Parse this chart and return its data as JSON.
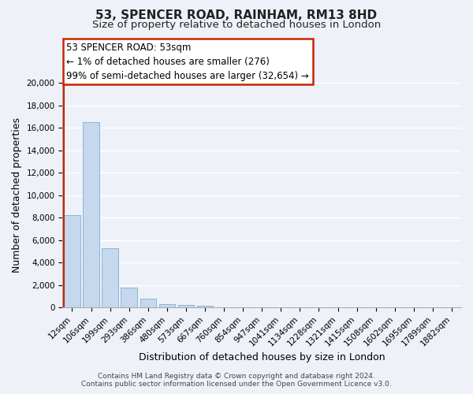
{
  "title": "53, SPENCER ROAD, RAINHAM, RM13 8HD",
  "subtitle": "Size of property relative to detached houses in London",
  "xlabel": "Distribution of detached houses by size in London",
  "ylabel": "Number of detached properties",
  "bar_labels": [
    "12sqm",
    "106sqm",
    "199sqm",
    "293sqm",
    "386sqm",
    "480sqm",
    "573sqm",
    "667sqm",
    "760sqm",
    "854sqm",
    "947sqm",
    "1041sqm",
    "1134sqm",
    "1228sqm",
    "1321sqm",
    "1415sqm",
    "1508sqm",
    "1602sqm",
    "1695sqm",
    "1789sqm",
    "1882sqm"
  ],
  "bar_values": [
    8200,
    16500,
    5300,
    1800,
    750,
    280,
    200,
    150,
    0,
    0,
    0,
    0,
    0,
    0,
    0,
    0,
    0,
    0,
    0,
    0,
    0
  ],
  "bar_color": "#c5d8ed",
  "bar_edge_color": "#7aafd4",
  "ylim": [
    0,
    20000
  ],
  "yticks": [
    0,
    2000,
    4000,
    6000,
    8000,
    10000,
    12000,
    14000,
    16000,
    18000,
    20000
  ],
  "annotation_box_text_line1": "53 SPENCER ROAD: 53sqm",
  "annotation_box_text_line2": "← 1% of detached houses are smaller (276)",
  "annotation_box_text_line3": "99% of semi-detached houses are larger (32,654) →",
  "footer_line1": "Contains HM Land Registry data © Crown copyright and database right 2024.",
  "footer_line2": "Contains public sector information licensed under the Open Government Licence v3.0.",
  "background_color": "#eef2f8",
  "grid_color": "#ffffff",
  "box_edge_color": "#cc2200",
  "red_line_x": 0,
  "title_fontsize": 11,
  "subtitle_fontsize": 9.5,
  "axis_label_fontsize": 9,
  "tick_fontsize": 7.5,
  "annotation_fontsize": 8.5,
  "footer_fontsize": 6.5
}
